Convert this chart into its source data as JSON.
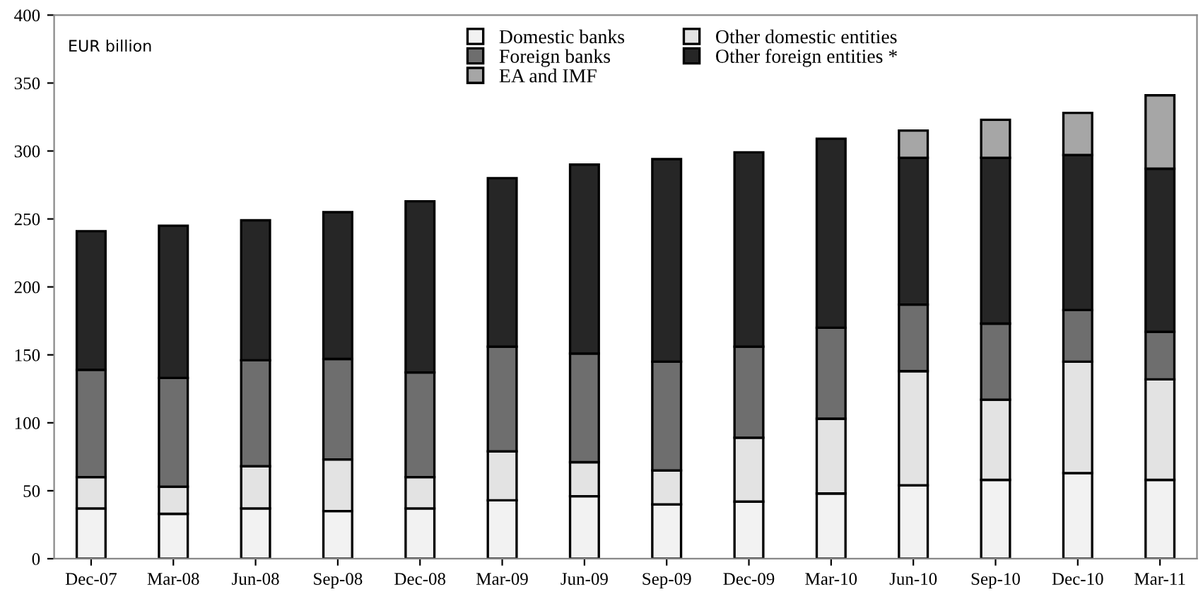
{
  "chart_data": {
    "type": "bar",
    "stacked": true,
    "ylabel": "EUR billion",
    "categories": [
      "Dec-07",
      "Mar-08",
      "Jun-08",
      "Sep-08",
      "Dec-08",
      "Mar-09",
      "Jun-09",
      "Sep-09",
      "Dec-09",
      "Mar-10",
      "Jun-10",
      "Sep-10",
      "Dec-10",
      "Mar-11"
    ],
    "series": [
      {
        "name": "Domestic banks",
        "color": "#f2f2f2",
        "values": [
          37,
          33,
          37,
          35,
          37,
          43,
          46,
          40,
          42,
          48,
          54,
          58,
          63,
          58
        ]
      },
      {
        "name": "Other domestic entities",
        "color": "#e3e3e3",
        "values": [
          23,
          20,
          31,
          38,
          23,
          36,
          25,
          25,
          47,
          55,
          84,
          59,
          82,
          74
        ]
      },
      {
        "name": "Foreign banks",
        "color": "#6e6e6e",
        "values": [
          79,
          80,
          78,
          74,
          77,
          77,
          80,
          80,
          67,
          67,
          49,
          56,
          38,
          35
        ]
      },
      {
        "name": "Other foreign entities *",
        "color": "#262626",
        "values": [
          102,
          112,
          103,
          108,
          126,
          124,
          139,
          149,
          143,
          139,
          108,
          122,
          114,
          120
        ]
      },
      {
        "name": "EA and IMF",
        "color": "#a6a6a6",
        "values": [
          null,
          null,
          null,
          null,
          null,
          null,
          null,
          null,
          null,
          null,
          20,
          28,
          31,
          54
        ]
      }
    ],
    "ylim": [
      0,
      400
    ],
    "yticks": [
      0,
      50,
      100,
      150,
      200,
      250,
      300,
      350,
      400
    ],
    "grid": false,
    "legend": "top"
  }
}
